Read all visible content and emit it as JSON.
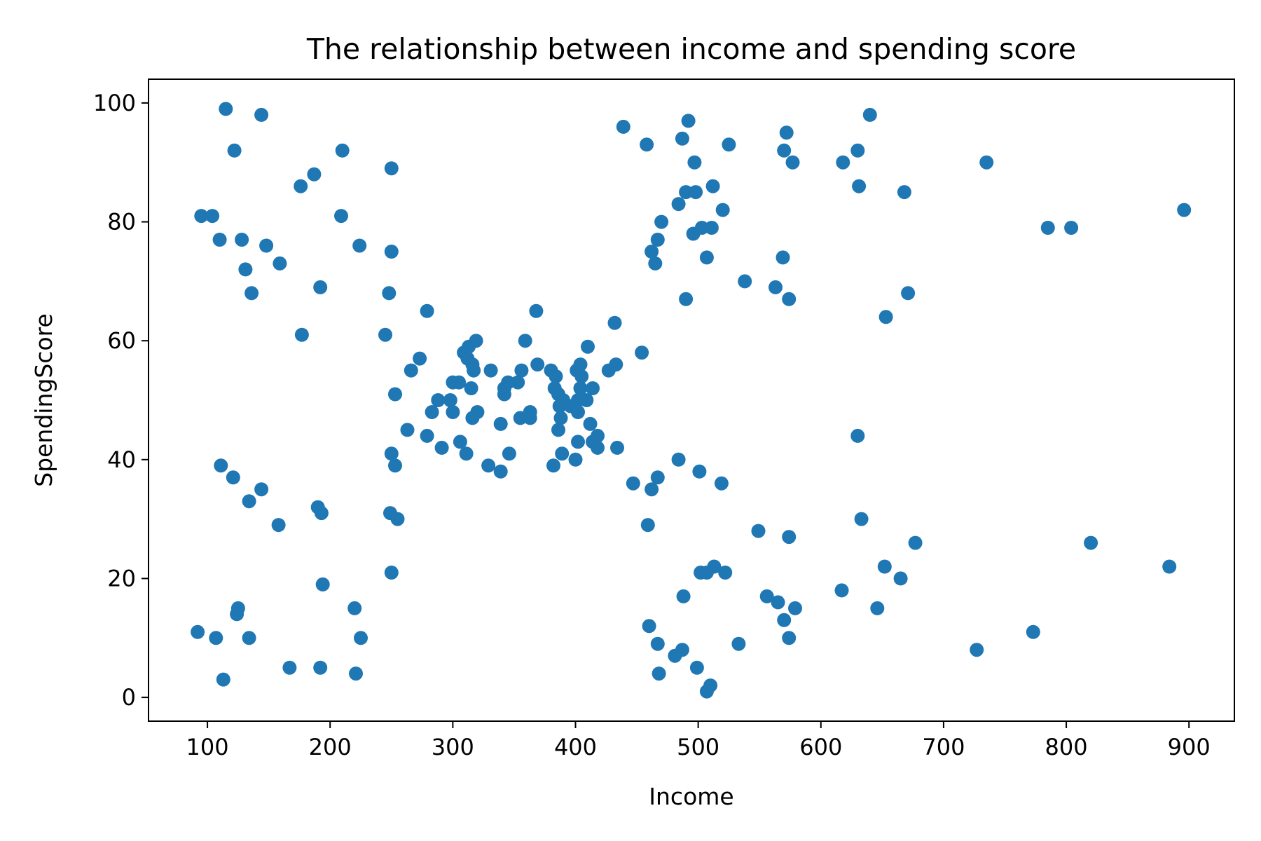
{
  "chart_data": {
    "type": "scatter",
    "title": "The relationship between income and spending score",
    "xlabel": "Income",
    "ylabel": "SpendingScore",
    "xlim": [
      52,
      937
    ],
    "ylim": [
      -4,
      104
    ],
    "xticks": [
      100,
      200,
      300,
      400,
      500,
      600,
      700,
      800,
      900
    ],
    "yticks": [
      0,
      20,
      40,
      60,
      80,
      100
    ],
    "grid": false,
    "legend": "none",
    "marker_color": "#1f77b4",
    "series": [
      {
        "points": [
          [
            115,
            99
          ],
          [
            144,
            98
          ],
          [
            122,
            92
          ],
          [
            210,
            92
          ],
          [
            187,
            88
          ],
          [
            250,
            89
          ],
          [
            176,
            86
          ],
          [
            95,
            81
          ],
          [
            104,
            81
          ],
          [
            209,
            81
          ],
          [
            110,
            77
          ],
          [
            128,
            77
          ],
          [
            148,
            76
          ],
          [
            224,
            76
          ],
          [
            250,
            75
          ],
          [
            159,
            73
          ],
          [
            131,
            72
          ],
          [
            136,
            68
          ],
          [
            248,
            68
          ],
          [
            192,
            69
          ],
          [
            177,
            61
          ],
          [
            245,
            61
          ],
          [
            279,
            65
          ],
          [
            273,
            57
          ],
          [
            266,
            55
          ],
          [
            253,
            51
          ],
          [
            263,
            45
          ],
          [
            250,
            41
          ],
          [
            253,
            39
          ],
          [
            288,
            50
          ],
          [
            283,
            48
          ],
          [
            300,
            48
          ],
          [
            298,
            50
          ],
          [
            300,
            53
          ],
          [
            305,
            53
          ],
          [
            309,
            58
          ],
          [
            313,
            59
          ],
          [
            312,
            57
          ],
          [
            316,
            56
          ],
          [
            317,
            55
          ],
          [
            319,
            60
          ],
          [
            315,
            52
          ],
          [
            320,
            48
          ],
          [
            316,
            47
          ],
          [
            306,
            43
          ],
          [
            311,
            41
          ],
          [
            291,
            42
          ],
          [
            279,
            44
          ],
          [
            331,
            55
          ],
          [
            342,
            52
          ],
          [
            342,
            51
          ],
          [
            345,
            53
          ],
          [
            353,
            53
          ],
          [
            339,
            46
          ],
          [
            346,
            41
          ],
          [
            329,
            39
          ],
          [
            339,
            38
          ],
          [
            356,
            55
          ],
          [
            359,
            60
          ],
          [
            368,
            65
          ],
          [
            369,
            56
          ],
          [
            355,
            47
          ],
          [
            363,
            47
          ],
          [
            363,
            48
          ],
          [
            380,
            55
          ],
          [
            384,
            54
          ],
          [
            383,
            52
          ],
          [
            386,
            51
          ],
          [
            387,
            49
          ],
          [
            390,
            50
          ],
          [
            388,
            47
          ],
          [
            386,
            45
          ],
          [
            389,
            41
          ],
          [
            382,
            39
          ],
          [
            401,
            55
          ],
          [
            404,
            56
          ],
          [
            405,
            54
          ],
          [
            404,
            52
          ],
          [
            402,
            50
          ],
          [
            396,
            49
          ],
          [
            402,
            48
          ],
          [
            410,
            59
          ],
          [
            409,
            50
          ],
          [
            412,
            46
          ],
          [
            414,
            52
          ],
          [
            414,
            43
          ],
          [
            418,
            44
          ],
          [
            418,
            42
          ],
          [
            402,
            43
          ],
          [
            400,
            40
          ],
          [
            427,
            55
          ],
          [
            433,
            56
          ],
          [
            432,
            63
          ],
          [
            434,
            42
          ],
          [
            454,
            58
          ],
          [
            439,
            96
          ],
          [
            458,
            93
          ],
          [
            487,
            94
          ],
          [
            492,
            97
          ],
          [
            570,
            92
          ],
          [
            572,
            95
          ],
          [
            577,
            90
          ],
          [
            497,
            90
          ],
          [
            525,
            93
          ],
          [
            490,
            85
          ],
          [
            498,
            85
          ],
          [
            512,
            86
          ],
          [
            484,
            83
          ],
          [
            520,
            82
          ],
          [
            470,
            80
          ],
          [
            462,
            75
          ],
          [
            467,
            77
          ],
          [
            465,
            73
          ],
          [
            496,
            78
          ],
          [
            503,
            79
          ],
          [
            511,
            79
          ],
          [
            507,
            74
          ],
          [
            490,
            67
          ],
          [
            538,
            70
          ],
          [
            563,
            69
          ],
          [
            569,
            74
          ],
          [
            574,
            67
          ],
          [
            618,
            90
          ],
          [
            630,
            92
          ],
          [
            640,
            98
          ],
          [
            631,
            86
          ],
          [
            668,
            85
          ],
          [
            735,
            90
          ],
          [
            653,
            64
          ],
          [
            671,
            68
          ],
          [
            785,
            79
          ],
          [
            804,
            79
          ],
          [
            896,
            82
          ],
          [
            630,
            44
          ],
          [
            633,
            30
          ],
          [
            677,
            26
          ],
          [
            652,
            22
          ],
          [
            665,
            20
          ],
          [
            617,
            18
          ],
          [
            646,
            15
          ],
          [
            820,
            26
          ],
          [
            884,
            22
          ],
          [
            727,
            8
          ],
          [
            773,
            11
          ],
          [
            447,
            36
          ],
          [
            462,
            35
          ],
          [
            467,
            37
          ],
          [
            484,
            40
          ],
          [
            501,
            38
          ],
          [
            519,
            36
          ],
          [
            459,
            29
          ],
          [
            549,
            28
          ],
          [
            574,
            27
          ],
          [
            502,
            21
          ],
          [
            507,
            21
          ],
          [
            513,
            22
          ],
          [
            522,
            21
          ],
          [
            556,
            17
          ],
          [
            565,
            16
          ],
          [
            579,
            15
          ],
          [
            570,
            13
          ],
          [
            574,
            10
          ],
          [
            488,
            17
          ],
          [
            460,
            12
          ],
          [
            467,
            9
          ],
          [
            487,
            8
          ],
          [
            481,
            7
          ],
          [
            533,
            9
          ],
          [
            468,
            4
          ],
          [
            499,
            5
          ],
          [
            507,
            1
          ],
          [
            510,
            2
          ],
          [
            111,
            39
          ],
          [
            121,
            37
          ],
          [
            144,
            35
          ],
          [
            134,
            33
          ],
          [
            190,
            32
          ],
          [
            193,
            31
          ],
          [
            158,
            29
          ],
          [
            249,
            31
          ],
          [
            255,
            30
          ],
          [
            250,
            21
          ],
          [
            194,
            19
          ],
          [
            220,
            15
          ],
          [
            125,
            15
          ],
          [
            124,
            14
          ],
          [
            92,
            11
          ],
          [
            107,
            10
          ],
          [
            134,
            10
          ],
          [
            225,
            10
          ],
          [
            167,
            5
          ],
          [
            192,
            5
          ],
          [
            221,
            4
          ],
          [
            113,
            3
          ]
        ]
      }
    ]
  }
}
